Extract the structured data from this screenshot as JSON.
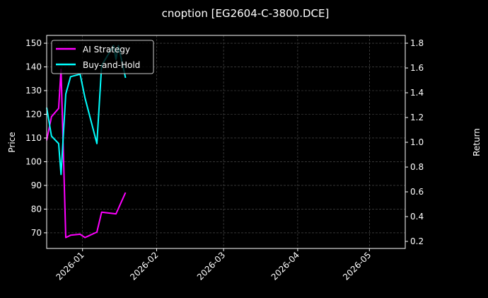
{
  "chart_data": {
    "type": "line",
    "title": "cnoption [EG2604-C-3800.DCE]",
    "xlabel": "",
    "ylabel": "Price",
    "ylabel_right": "Return",
    "xlim": [
      "2025-12-17",
      "2026-05-16"
    ],
    "ylim": [
      63.4,
      153.3
    ],
    "ylim_right": [
      0.143,
      1.863
    ],
    "x_ticks": [
      {
        "date": "2026-01-01",
        "label": "2026-01"
      },
      {
        "date": "2026-02-01",
        "label": "2026-02"
      },
      {
        "date": "2026-03-01",
        "label": "2026-03"
      },
      {
        "date": "2026-04-01",
        "label": "2026-04"
      },
      {
        "date": "2026-05-01",
        "label": "2026-05"
      }
    ],
    "y_ticks": [
      70,
      80,
      90,
      100,
      110,
      120,
      130,
      140,
      150
    ],
    "y_ticks_right": [
      "0.2",
      "0.4",
      "0.6",
      "0.8",
      "1.0",
      "1.2",
      "1.4",
      "1.6",
      "1.8"
    ],
    "grid": true,
    "legend_position": "top-left",
    "series": [
      {
        "name": "AI Strategy",
        "color": "#ff00ff",
        "axis": "left",
        "x": [
          "2025-12-17",
          "2025-12-19",
          "2025-12-22",
          "2025-12-23",
          "2025-12-25",
          "2025-12-27",
          "2025-12-31",
          "2026-01-02",
          "2026-01-07",
          "2026-01-09",
          "2026-01-15",
          "2026-01-19"
        ],
        "y": [
          109,
          119,
          122.5,
          139,
          68,
          69,
          69.4,
          68,
          70.3,
          78.7,
          78,
          87
        ]
      },
      {
        "name": "Buy-and-Hold",
        "color": "#00ffff",
        "axis": "right",
        "x": [
          "2025-12-17",
          "2025-12-19",
          "2025-12-22",
          "2025-12-23",
          "2025-12-25",
          "2025-12-27",
          "2025-12-31",
          "2026-01-02",
          "2026-01-07",
          "2026-01-09",
          "2026-01-13",
          "2026-01-14",
          "2026-01-15",
          "2026-01-16",
          "2026-01-19"
        ],
        "y": [
          1.28,
          1.05,
          0.99,
          0.74,
          1.39,
          1.53,
          1.55,
          1.36,
          0.99,
          1.62,
          1.75,
          1.78,
          1.67,
          1.78,
          1.52
        ]
      }
    ]
  }
}
